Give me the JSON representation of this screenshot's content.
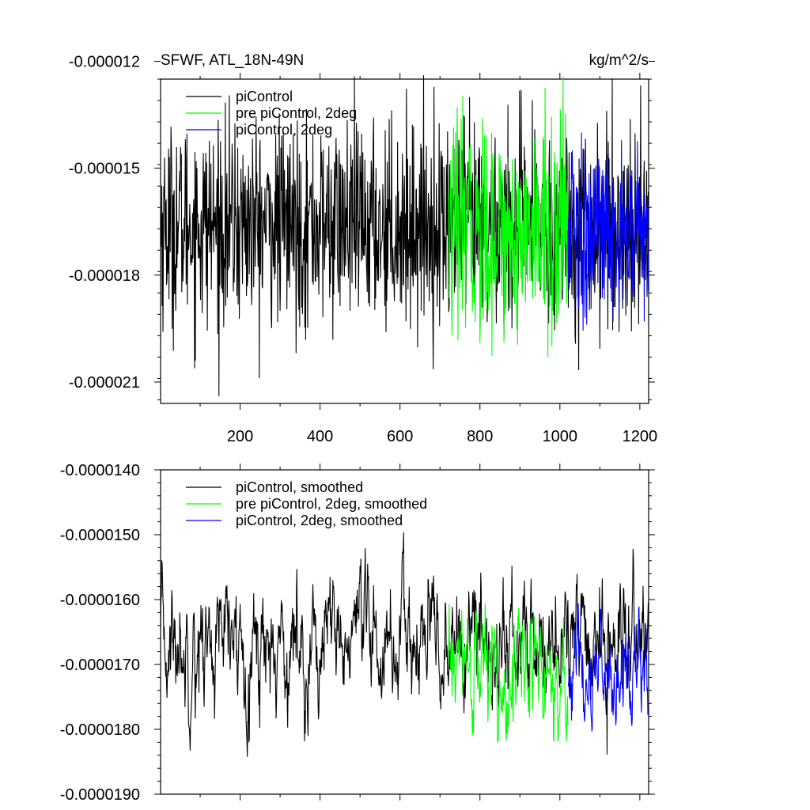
{
  "chart_data": [
    {
      "type": "line",
      "title_left": "SFWF, ATL_18N-49N",
      "title_right": "kg/m^2/s",
      "xlim": [
        1,
        1222
      ],
      "ylim": [
        -2.16e-05,
        -1.25e-05
      ],
      "x_ticks": [
        200,
        400,
        600,
        800,
        1000,
        1200
      ],
      "x_tick_labels": [
        "200",
        "400",
        "600",
        "800",
        "1000",
        "1200"
      ],
      "y_ticks": [
        -1.2e-05,
        -1.5e-05,
        -1.8e-05,
        -2.1e-05
      ],
      "y_tick_labels": [
        "-0.000012",
        "-0.000015",
        "-0.000018",
        "-0.000021"
      ],
      "legend_position": "top-left",
      "series": [
        {
          "name": "piControl",
          "color": "#000000",
          "x_range": [
            1,
            1222
          ],
          "mean": -1.66e-05,
          "spread": 1.4e-06,
          "min": -2.14e-05,
          "max": -1.1e-05
        },
        {
          "name": "pre piControl, 2deg",
          "color": "#00ff00",
          "x_range": [
            721,
            1020
          ],
          "mean": -1.68e-05,
          "spread": 1.5e-06,
          "min": -2.05e-05,
          "max": -1.15e-05
        },
        {
          "name": "piControl, 2deg",
          "color": "#0000ff",
          "x_range": [
            1021,
            1222
          ],
          "mean": -1.69e-05,
          "spread": 1.3e-06,
          "min": -2.1e-05,
          "max": -1.25e-05
        }
      ]
    },
    {
      "type": "line",
      "xlim": [
        1,
        1222
      ],
      "ylim": [
        -1.9e-05,
        -1.4e-05
      ],
      "x_ticks": [
        200,
        400,
        600,
        800,
        1000,
        1200
      ],
      "y_ticks": [
        -1.4e-05,
        -1.5e-05,
        -1.6e-05,
        -1.7e-05,
        -1.8e-05,
        -1.9e-05
      ],
      "y_tick_labels": [
        "-0.0000140",
        "-0.0000150",
        "-0.0000160",
        "-0.0000170",
        "-0.0000180",
        "-0.0000190"
      ],
      "legend_position": "top-left",
      "series": [
        {
          "name": "piControl, smoothed",
          "color": "#000000",
          "x_range": [
            1,
            1222
          ],
          "mean": -1.67e-05,
          "spread": 6e-07,
          "min": -1.85e-05,
          "max": -1.49e-05
        },
        {
          "name": "pre piControl, 2deg, smoothed",
          "color": "#00ff00",
          "x_range": [
            721,
            1020
          ],
          "mean": -1.71e-05,
          "spread": 6e-07,
          "min": -1.82e-05,
          "max": -1.58e-05
        },
        {
          "name": "piControl, 2deg, smoothed",
          "color": "#0000ff",
          "x_range": [
            1021,
            1222
          ],
          "mean": -1.72e-05,
          "spread": 5e-07,
          "min": -1.82e-05,
          "max": -1.58e-05
        }
      ]
    }
  ]
}
